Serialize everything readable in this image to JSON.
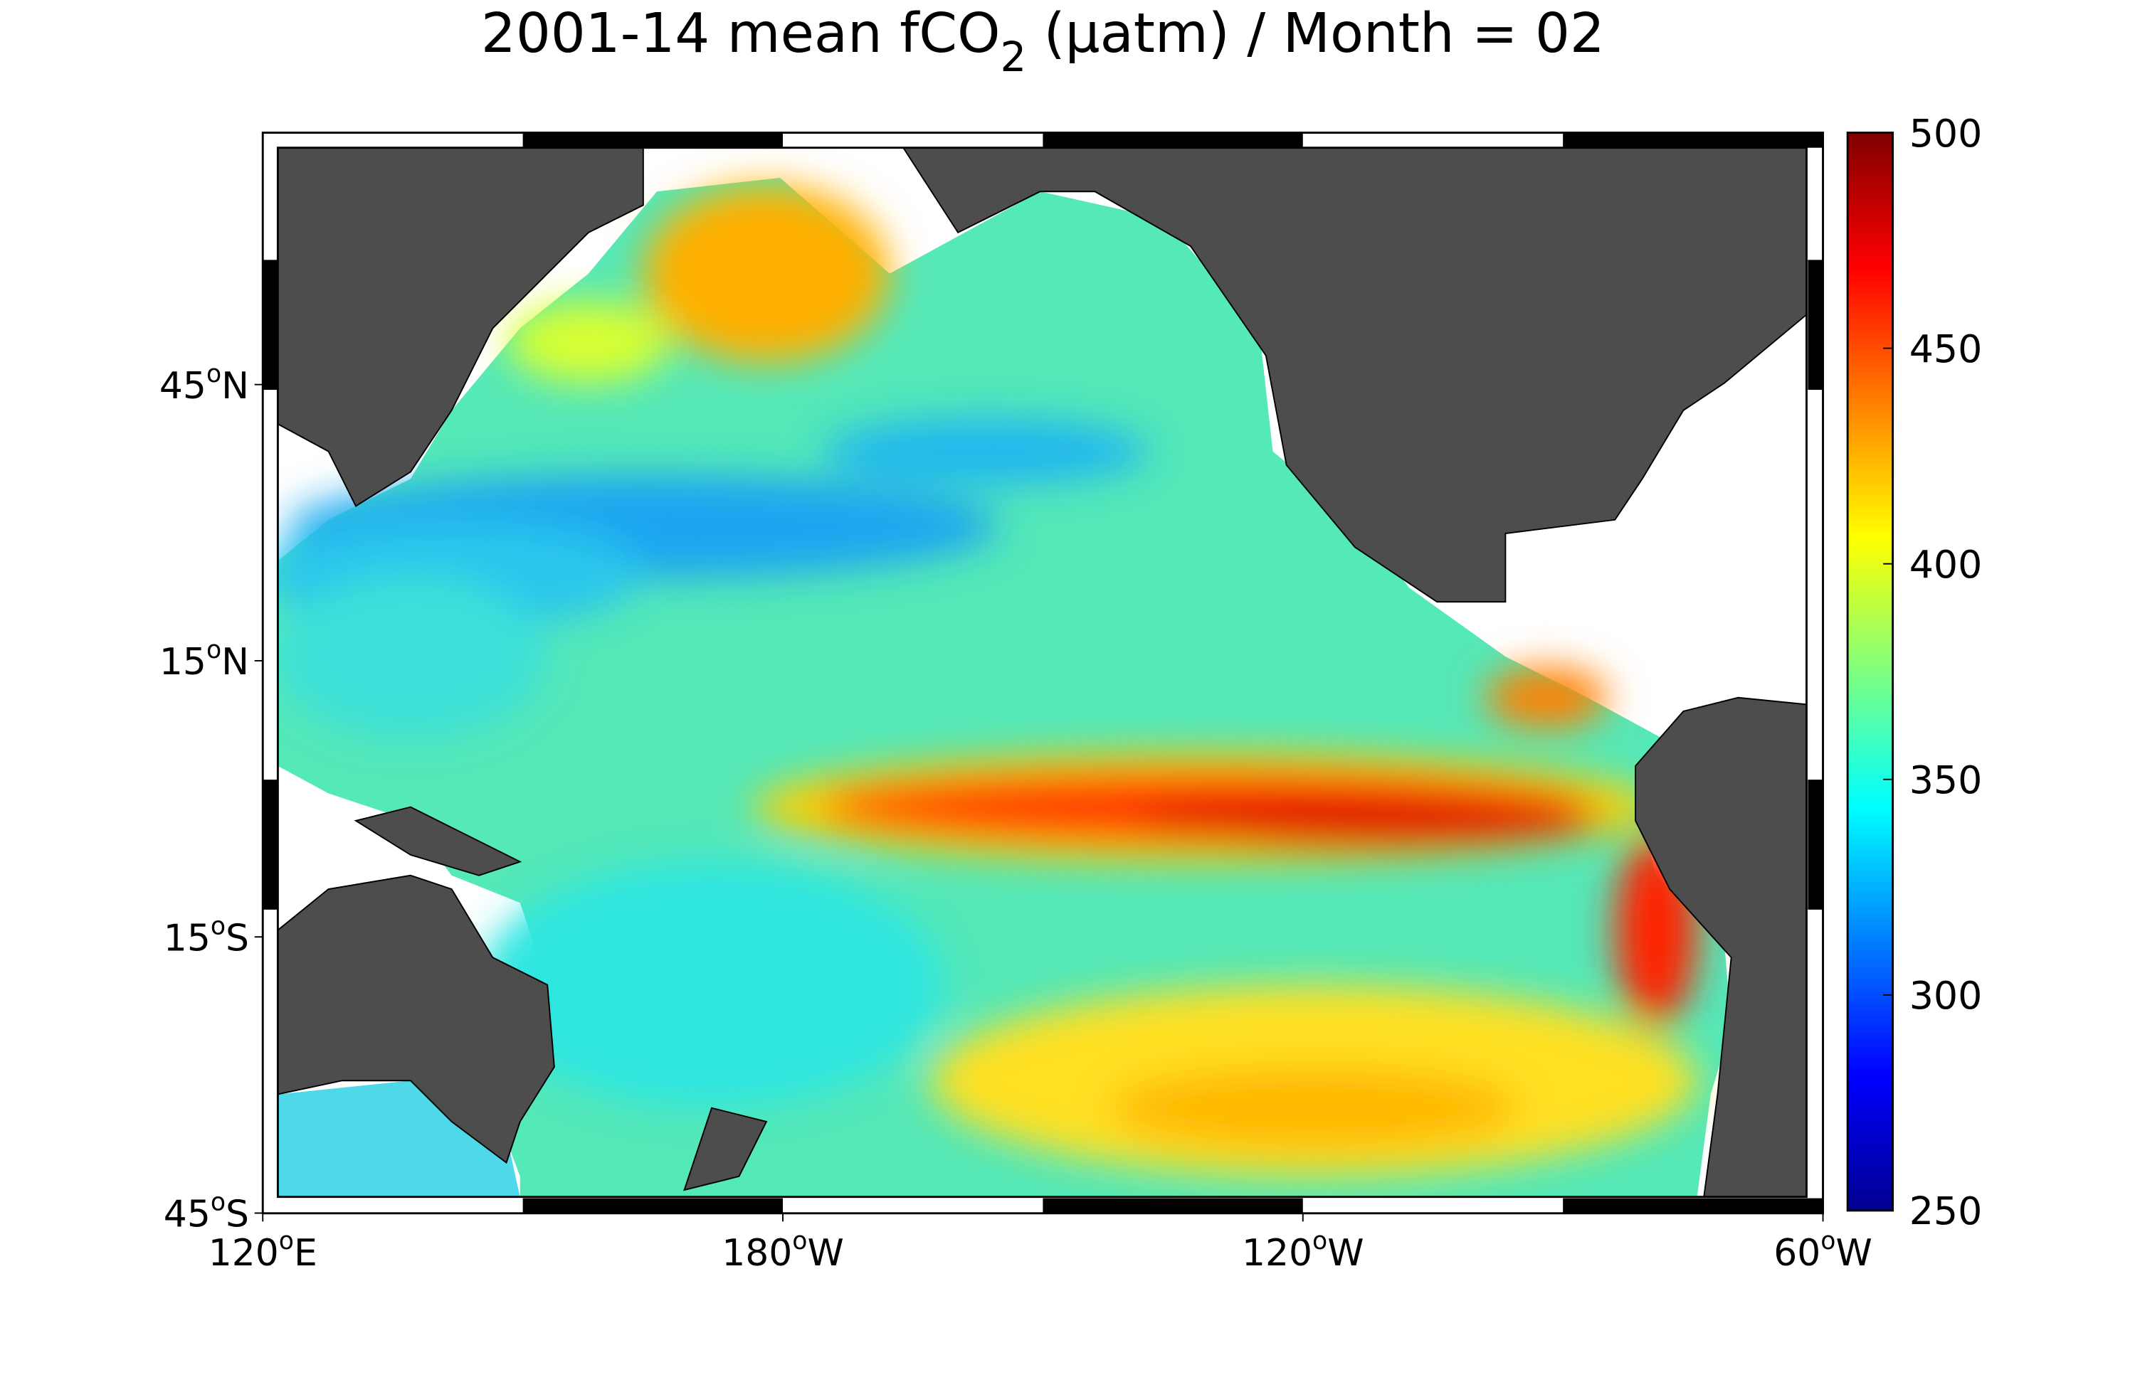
{
  "title": {
    "main": "2001-14 mean fCO",
    "subscript": "2",
    "rest": " (µatm) / Month = 02"
  },
  "map": {
    "lon_ticks": [
      {
        "value": 120,
        "number": "120",
        "degree": "o",
        "hemisphere": "E"
      },
      {
        "value": 180,
        "number": "180",
        "degree": "o",
        "hemisphere": "W"
      },
      {
        "value": 240,
        "number": "120",
        "degree": "o",
        "hemisphere": "W"
      },
      {
        "value": 300,
        "number": "60",
        "degree": "o",
        "hemisphere": "W"
      }
    ],
    "lat_ticks": [
      {
        "value": -45,
        "number": "45",
        "degree": "o",
        "hemisphere": "S"
      },
      {
        "value": -15,
        "number": "15",
        "degree": "o",
        "hemisphere": "S"
      },
      {
        "value": 15,
        "number": "15",
        "degree": "o",
        "hemisphere": "N"
      },
      {
        "value": 45,
        "number": "45",
        "degree": "o",
        "hemisphere": "N"
      }
    ]
  },
  "colorbar": {
    "colormap": "jet",
    "lim": [
      250,
      500
    ],
    "ticks": [
      250,
      300,
      350,
      400,
      450,
      500
    ]
  }
}
